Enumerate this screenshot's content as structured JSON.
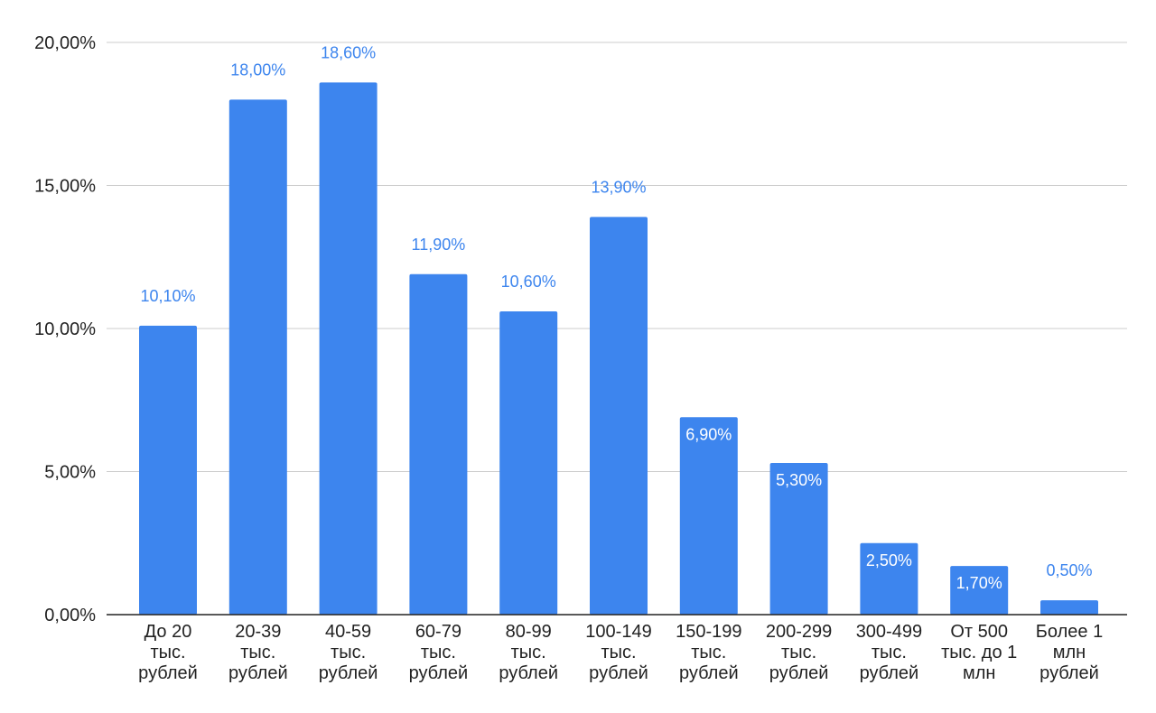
{
  "chart_data": {
    "type": "bar",
    "title": "",
    "xlabel": "",
    "ylabel": "",
    "ylim": [
      0,
      20
    ],
    "yticks": [
      0,
      5,
      10,
      15,
      20
    ],
    "ytick_labels": [
      "0,00%",
      "5,00%",
      "10,00%",
      "15,00%",
      "20,00%"
    ],
    "grid": true,
    "legend": "none",
    "categories": [
      [
        "До 20",
        "тыс.",
        "рублей"
      ],
      [
        "20-39",
        "тыс.",
        "рублей"
      ],
      [
        "40-59",
        "тыс.",
        "рублей"
      ],
      [
        "60-79",
        "тыс.",
        "рублей"
      ],
      [
        "80-99",
        "тыс.",
        "рублей"
      ],
      [
        "100-149",
        "тыс.",
        "рублей"
      ],
      [
        "150-199",
        "тыс.",
        "рублей"
      ],
      [
        "200-299",
        "тыс.",
        "рублей"
      ],
      [
        "300-499",
        "тыс.",
        "рублей"
      ],
      [
        "От 500",
        "тыс. до 1",
        "млн"
      ],
      [
        "Более 1",
        "млн",
        "рублей"
      ]
    ],
    "values": [
      10.1,
      18.0,
      18.6,
      11.9,
      10.6,
      13.9,
      6.9,
      5.3,
      2.5,
      1.7,
      0.5
    ],
    "value_labels": [
      "10,10%",
      "18,00%",
      "18,60%",
      "11,90%",
      "10,60%",
      "13,90%",
      "6,90%",
      "5,30%",
      "2,50%",
      "1,70%",
      "0,50%"
    ],
    "colors": {
      "bar": "#3d85ee",
      "label_outside": "#3d85ee",
      "label_inside": "#ffffff",
      "grid": "#cccccc",
      "axis": "#222222"
    }
  }
}
